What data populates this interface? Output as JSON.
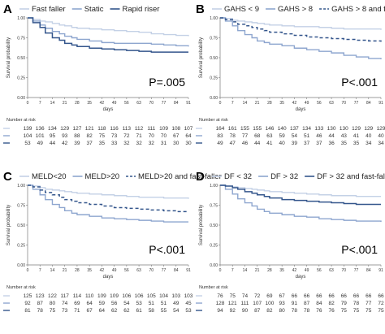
{
  "figure": {
    "colors": {
      "light": "#c4d1e6",
      "mid": "#8ea6cf",
      "dark": "#34568c",
      "axis": "#7a7a7a",
      "text": "#222222"
    }
  },
  "chart_data": [
    {
      "type": "line",
      "panel": "A",
      "legend": [
        "Fast faller",
        "Static",
        "Rapid riser"
      ],
      "ylabel": "Survival probability",
      "xlabel": "days",
      "x_ticks": [
        0,
        7,
        14,
        21,
        28,
        35,
        42,
        49,
        56,
        63,
        70,
        77,
        84,
        91
      ],
      "y_ticks": [
        "0.00",
        "0.25",
        "0.50",
        "0.75",
        "1.00"
      ],
      "xlim": [
        0,
        91
      ],
      "ylim": [
        0,
        1
      ],
      "pvalue": "P=.005",
      "risk_title": "Number at risk",
      "series": [
        {
          "name": "Fast faller",
          "style": "light",
          "x": [
            0,
            3,
            7,
            10,
            14,
            18,
            21,
            25,
            28,
            35,
            42,
            49,
            56,
            63,
            70,
            77,
            84,
            91
          ],
          "y": [
            1.0,
            0.98,
            0.96,
            0.95,
            0.93,
            0.91,
            0.9,
            0.88,
            0.87,
            0.86,
            0.85,
            0.84,
            0.83,
            0.82,
            0.8,
            0.79,
            0.78,
            0.77
          ]
        },
        {
          "name": "Static",
          "style": "mid",
          "x": [
            0,
            3,
            7,
            10,
            14,
            18,
            21,
            25,
            28,
            35,
            42,
            49,
            56,
            63,
            70,
            77,
            84,
            91
          ],
          "y": [
            1.0,
            0.96,
            0.91,
            0.87,
            0.83,
            0.8,
            0.77,
            0.75,
            0.73,
            0.71,
            0.69,
            0.68,
            0.68,
            0.68,
            0.67,
            0.66,
            0.65,
            0.64
          ]
        },
        {
          "name": "Rapid riser",
          "style": "dark",
          "x": [
            0,
            3,
            7,
            10,
            14,
            18,
            21,
            25,
            28,
            35,
            42,
            49,
            56,
            63,
            70,
            77,
            84,
            91
          ],
          "y": [
            1.0,
            0.94,
            0.88,
            0.81,
            0.75,
            0.72,
            0.68,
            0.66,
            0.64,
            0.62,
            0.61,
            0.6,
            0.59,
            0.58,
            0.57,
            0.57,
            0.57,
            0.57
          ]
        }
      ],
      "risk": [
        {
          "style": "light",
          "values": [
            "139",
            "136",
            "134",
            "129",
            "127",
            "121",
            "118",
            "116",
            "113",
            "112",
            "111",
            "109",
            "108",
            "107"
          ]
        },
        {
          "style": "mid",
          "values": [
            "104",
            "101",
            "95",
            "93",
            "88",
            "82",
            "75",
            "73",
            "72",
            "71",
            "70",
            "70",
            "67",
            "64"
          ]
        },
        {
          "style": "dark",
          "values": [
            "53",
            "49",
            "44",
            "42",
            "39",
            "37",
            "35",
            "33",
            "32",
            "32",
            "32",
            "31",
            "30",
            "30"
          ]
        }
      ]
    },
    {
      "type": "line",
      "panel": "B",
      "legend": [
        "GAHS < 9",
        "GAHS > 8",
        "GAHS > 8 and fast-faller"
      ],
      "ylabel": "Survival probability",
      "xlabel": "days",
      "x_ticks": [
        0,
        7,
        14,
        21,
        28,
        35,
        42,
        49,
        56,
        63,
        70,
        77,
        84,
        91
      ],
      "y_ticks": [
        "0.00",
        "0.25",
        "0.50",
        "0.75",
        "1.00"
      ],
      "xlim": [
        0,
        91
      ],
      "ylim": [
        0,
        1
      ],
      "pvalue": "P<.001",
      "risk_title": "Number at risk",
      "series": [
        {
          "name": "GAHS < 9",
          "style": "light",
          "x": [
            0,
            3,
            7,
            10,
            14,
            18,
            21,
            25,
            28,
            35,
            42,
            49,
            56,
            63,
            70,
            77,
            84,
            91
          ],
          "y": [
            1.0,
            0.99,
            0.97,
            0.96,
            0.95,
            0.94,
            0.93,
            0.92,
            0.91,
            0.9,
            0.89,
            0.89,
            0.88,
            0.87,
            0.86,
            0.86,
            0.86,
            0.85
          ]
        },
        {
          "name": "GAHS > 8",
          "style": "mid",
          "x": [
            0,
            3,
            7,
            10,
            14,
            18,
            21,
            25,
            28,
            35,
            42,
            49,
            56,
            63,
            70,
            77,
            84,
            91
          ],
          "y": [
            1.0,
            0.96,
            0.9,
            0.84,
            0.79,
            0.75,
            0.71,
            0.69,
            0.67,
            0.65,
            0.62,
            0.6,
            0.58,
            0.56,
            0.53,
            0.51,
            0.49,
            0.48
          ]
        },
        {
          "name": "GAHS > 8 and fast-faller",
          "style": "dashed",
          "x": [
            0,
            3,
            7,
            10,
            14,
            18,
            21,
            25,
            28,
            35,
            42,
            49,
            56,
            63,
            70,
            77,
            84,
            91
          ],
          "y": [
            1.0,
            0.98,
            0.95,
            0.92,
            0.9,
            0.88,
            0.86,
            0.84,
            0.82,
            0.8,
            0.78,
            0.76,
            0.75,
            0.74,
            0.73,
            0.72,
            0.71,
            0.7
          ]
        }
      ],
      "risk": [
        {
          "style": "light",
          "values": [
            "164",
            "161",
            "155",
            "155",
            "146",
            "140",
            "137",
            "134",
            "133",
            "130",
            "130",
            "129",
            "129",
            "129"
          ]
        },
        {
          "style": "mid",
          "values": [
            "83",
            "78",
            "77",
            "68",
            "63",
            "59",
            "54",
            "51",
            "46",
            "44",
            "43",
            "41",
            "40",
            "40"
          ]
        },
        {
          "style": "dark",
          "values": [
            "49",
            "47",
            "46",
            "44",
            "41",
            "40",
            "39",
            "37",
            "37",
            "36",
            "35",
            "35",
            "34",
            "34"
          ]
        }
      ]
    },
    {
      "type": "line",
      "panel": "C",
      "legend": [
        "MELD<20",
        "MELD>20",
        "MELD>20 and fast-faller"
      ],
      "ylabel": "Survival probability",
      "xlabel": "days",
      "x_ticks": [
        0,
        7,
        14,
        21,
        28,
        35,
        42,
        49,
        56,
        63,
        70,
        77,
        84,
        91
      ],
      "y_ticks": [
        "0.00",
        "0.25",
        "0.50",
        "0.75",
        "1.00"
      ],
      "xlim": [
        0,
        91
      ],
      "ylim": [
        0,
        1
      ],
      "pvalue": "P<.001",
      "risk_title": "Number at risk",
      "series": [
        {
          "name": "MELD<20",
          "style": "light",
          "x": [
            0,
            3,
            7,
            10,
            14,
            18,
            21,
            25,
            28,
            35,
            42,
            49,
            56,
            63,
            70,
            77,
            84,
            91
          ],
          "y": [
            1.0,
            0.99,
            0.97,
            0.95,
            0.94,
            0.93,
            0.92,
            0.91,
            0.9,
            0.89,
            0.88,
            0.87,
            0.86,
            0.85,
            0.85,
            0.84,
            0.84,
            0.83
          ]
        },
        {
          "name": "MELD>20",
          "style": "mid",
          "x": [
            0,
            3,
            7,
            10,
            14,
            18,
            21,
            25,
            28,
            35,
            42,
            49,
            56,
            63,
            70,
            77,
            84,
            91
          ],
          "y": [
            1.0,
            0.95,
            0.88,
            0.82,
            0.76,
            0.72,
            0.68,
            0.65,
            0.63,
            0.61,
            0.59,
            0.58,
            0.57,
            0.56,
            0.55,
            0.54,
            0.54,
            0.54
          ]
        },
        {
          "name": "MELD>20 and fast-faller",
          "style": "dashed",
          "x": [
            0,
            3,
            7,
            10,
            14,
            18,
            21,
            25,
            28,
            35,
            42,
            49,
            56,
            63,
            70,
            77,
            84,
            91
          ],
          "y": [
            1.0,
            0.98,
            0.94,
            0.91,
            0.88,
            0.85,
            0.82,
            0.8,
            0.78,
            0.76,
            0.74,
            0.72,
            0.71,
            0.7,
            0.69,
            0.68,
            0.67,
            0.67
          ]
        }
      ],
      "risk": [
        {
          "style": "light",
          "values": [
            "125",
            "123",
            "122",
            "117",
            "114",
            "110",
            "109",
            "109",
            "106",
            "106",
            "105",
            "104",
            "103",
            "103"
          ]
        },
        {
          "style": "mid",
          "values": [
            "92",
            "87",
            "80",
            "74",
            "69",
            "64",
            "59",
            "56",
            "54",
            "53",
            "51",
            "51",
            "49",
            "45"
          ]
        },
        {
          "style": "dark",
          "values": [
            "81",
            "78",
            "75",
            "73",
            "71",
            "67",
            "64",
            "62",
            "62",
            "61",
            "58",
            "55",
            "54",
            "53"
          ]
        }
      ]
    },
    {
      "type": "line",
      "panel": "D",
      "legend": [
        "DF < 32",
        "DF > 32",
        "DF > 32 and fast-faller"
      ],
      "ylabel": "Survival probability",
      "xlabel": "days",
      "x_ticks": [
        0,
        7,
        14,
        21,
        28,
        35,
        42,
        49,
        56,
        63,
        70,
        77,
        84,
        91
      ],
      "y_ticks": [
        "0.00",
        "0.25",
        "0.50",
        "0.75",
        "1.00"
      ],
      "xlim": [
        0,
        91
      ],
      "ylim": [
        0,
        1
      ],
      "pvalue": "P<.001",
      "risk_title": "Number at risk",
      "series": [
        {
          "name": "DF < 32",
          "style": "light",
          "x": [
            0,
            3,
            7,
            10,
            14,
            18,
            21,
            25,
            28,
            35,
            42,
            49,
            56,
            63,
            70,
            77,
            84,
            91
          ],
          "y": [
            1.0,
            0.99,
            0.98,
            0.97,
            0.96,
            0.95,
            0.94,
            0.93,
            0.92,
            0.91,
            0.9,
            0.89,
            0.88,
            0.87,
            0.87,
            0.86,
            0.86,
            0.86
          ]
        },
        {
          "name": "DF > 32",
          "style": "mid",
          "x": [
            0,
            3,
            7,
            10,
            14,
            18,
            21,
            25,
            28,
            35,
            42,
            49,
            56,
            63,
            70,
            77,
            84,
            91
          ],
          "y": [
            1.0,
            0.95,
            0.89,
            0.83,
            0.78,
            0.74,
            0.7,
            0.67,
            0.65,
            0.63,
            0.61,
            0.6,
            0.58,
            0.57,
            0.56,
            0.55,
            0.55,
            0.54
          ]
        },
        {
          "name": "DF > 32 and fast-faller",
          "style": "dark",
          "x": [
            0,
            3,
            7,
            10,
            14,
            18,
            21,
            25,
            28,
            35,
            42,
            49,
            56,
            63,
            70,
            77,
            84,
            91
          ],
          "y": [
            1.0,
            0.99,
            0.97,
            0.95,
            0.92,
            0.9,
            0.88,
            0.86,
            0.84,
            0.82,
            0.81,
            0.8,
            0.79,
            0.78,
            0.77,
            0.76,
            0.76,
            0.76
          ]
        }
      ],
      "risk": [
        {
          "style": "light",
          "values": [
            "76",
            "75",
            "74",
            "72",
            "69",
            "67",
            "66",
            "66",
            "66",
            "66",
            "66",
            "66",
            "66",
            "66"
          ]
        },
        {
          "style": "mid",
          "values": [
            "128",
            "121",
            "111",
            "107",
            "100",
            "93",
            "91",
            "87",
            "84",
            "82",
            "79",
            "78",
            "77",
            "72"
          ]
        },
        {
          "style": "dark",
          "values": [
            "94",
            "92",
            "90",
            "87",
            "82",
            "80",
            "78",
            "78",
            "76",
            "76",
            "75",
            "75",
            "75",
            "75"
          ]
        }
      ]
    }
  ]
}
